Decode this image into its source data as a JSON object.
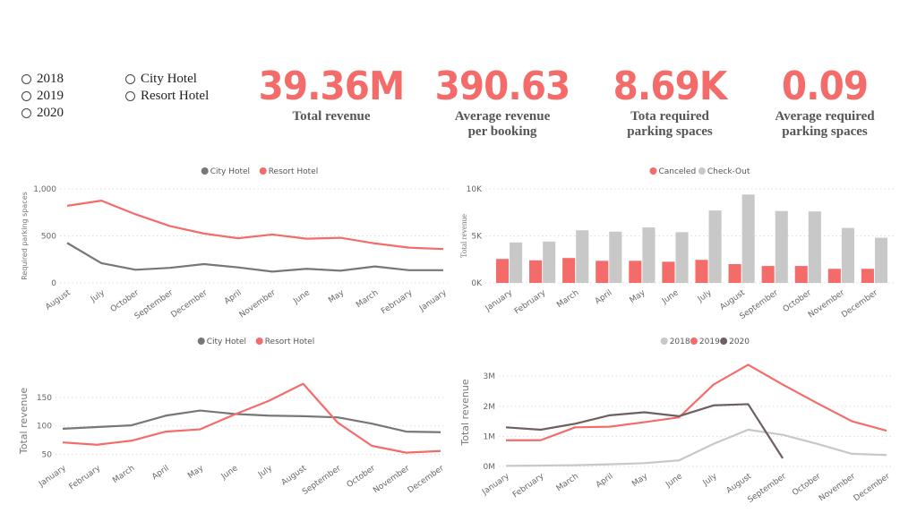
{
  "filters": {
    "years": [
      {
        "label": "2018"
      },
      {
        "label": "2019"
      },
      {
        "label": "2020"
      }
    ],
    "hotels": [
      {
        "label": "City Hotel"
      },
      {
        "label": "Resort Hotel"
      }
    ]
  },
  "kpis": [
    {
      "value": "39.36M",
      "label_lines": [
        "Total revenue"
      ]
    },
    {
      "value": "390.63",
      "label_lines": [
        "Average revenue",
        "per booking"
      ]
    },
    {
      "value": "8.69K",
      "label_lines": [
        "Tota required",
        "parking spaces"
      ]
    },
    {
      "value": "0.09",
      "label_lines": [
        "Average required",
        "parking spaces"
      ]
    }
  ],
  "colors": {
    "accent": "#F46C6A",
    "city": "#777777",
    "checkout": "#C8C8C8",
    "y2018": "#C8C8C8",
    "y2019": "#F46C6A",
    "y2020": "#6E5F60"
  },
  "chart_data": [
    {
      "type": "line",
      "title": "",
      "xlabel": "",
      "ylabel": "Required parking spaces",
      "ylim": [
        0,
        1000
      ],
      "yticks": [
        {
          "v": 0,
          "label": "0"
        },
        {
          "v": 500,
          "label": "500"
        },
        {
          "v": 1000,
          "label": "1,000"
        }
      ],
      "legend": "top-center",
      "grid": true,
      "categories": [
        "August",
        "July",
        "October",
        "September",
        "December",
        "April",
        "November",
        "June",
        "May",
        "March",
        "February",
        "January"
      ],
      "series": [
        {
          "name": "City Hotel",
          "color": "#777777",
          "values": [
            425,
            210,
            140,
            160,
            200,
            165,
            120,
            150,
            130,
            175,
            135,
            135
          ]
        },
        {
          "name": "Resort Hotel",
          "color": "#F46C6A",
          "values": [
            820,
            875,
            730,
            605,
            525,
            475,
            515,
            470,
            480,
            420,
            375,
            360
          ]
        }
      ]
    },
    {
      "type": "bar",
      "title": "",
      "xlabel": "",
      "ylabel": "Total revenue",
      "ylim": [
        0,
        10000
      ],
      "yticks": [
        {
          "v": 0,
          "label": "0K"
        },
        {
          "v": 5000,
          "label": "5K"
        },
        {
          "v": 10000,
          "label": "10K"
        }
      ],
      "legend": "top-center",
      "grid": true,
      "categories": [
        "January",
        "February",
        "March",
        "April",
        "May",
        "June",
        "July",
        "August",
        "September",
        "October",
        "November",
        "December"
      ],
      "series": [
        {
          "name": "Canceled",
          "color": "#F46C6A",
          "values": [
            2550,
            2400,
            2650,
            2350,
            2350,
            2250,
            2450,
            2000,
            1800,
            1800,
            1500,
            1500
          ]
        },
        {
          "name": "Check-Out",
          "color": "#C8C8C8",
          "values": [
            4300,
            4400,
            5600,
            5450,
            5900,
            5400,
            7700,
            9400,
            7650,
            7600,
            5850,
            4800
          ]
        }
      ]
    },
    {
      "type": "line",
      "title": "",
      "xlabel": "",
      "ylabel": "Total revenue",
      "ylim": [
        43,
        175
      ],
      "yticks": [
        {
          "v": 50,
          "label": "50"
        },
        {
          "v": 100,
          "label": "100"
        },
        {
          "v": 150,
          "label": "150"
        }
      ],
      "legend": "top-center",
      "grid": true,
      "categories": [
        "January",
        "February",
        "March",
        "April",
        "May",
        "June",
        "July",
        "August",
        "September",
        "October",
        "November",
        "December"
      ],
      "series": [
        {
          "name": "City Hotel",
          "color": "#777777",
          "values": [
            95,
            98,
            101,
            118,
            127,
            121,
            118,
            117,
            115,
            104,
            90,
            89
          ]
        },
        {
          "name": "Resort Hotel",
          "color": "#F46C6A",
          "values": [
            71,
            67,
            74,
            90,
            94,
            120,
            144,
            174,
            106,
            65,
            53,
            56
          ]
        }
      ]
    },
    {
      "type": "line",
      "title": "",
      "xlabel": "",
      "ylabel": "Total revenue",
      "ylim": [
        0,
        3600000
      ],
      "yticks": [
        {
          "v": 0,
          "label": "0M"
        },
        {
          "v": 1000000,
          "label": "1M"
        },
        {
          "v": 2000000,
          "label": "2M"
        },
        {
          "v": 3000000,
          "label": "3M"
        }
      ],
      "legend": "top-center",
      "grid": true,
      "categories": [
        "January",
        "February",
        "March",
        "April",
        "May",
        "June",
        "July",
        "August",
        "September",
        "October",
        "November",
        "December"
      ],
      "series": [
        {
          "name": "2018",
          "color": "#C8C8C8",
          "values": [
            20000,
            30000,
            40000,
            70000,
            110000,
            200000,
            750000,
            1220000,
            1050000,
            750000,
            420000,
            380000
          ]
        },
        {
          "name": "2019",
          "color": "#F46C6A",
          "values": [
            870000,
            870000,
            1300000,
            1320000,
            1470000,
            1630000,
            2720000,
            3380000,
            2720000,
            2100000,
            1500000,
            1190000
          ]
        },
        {
          "name": "2020",
          "color": "#6E5F60",
          "values": [
            1300000,
            1220000,
            1420000,
            1700000,
            1800000,
            1670000,
            2030000,
            2070000,
            270000
          ]
        }
      ]
    }
  ]
}
